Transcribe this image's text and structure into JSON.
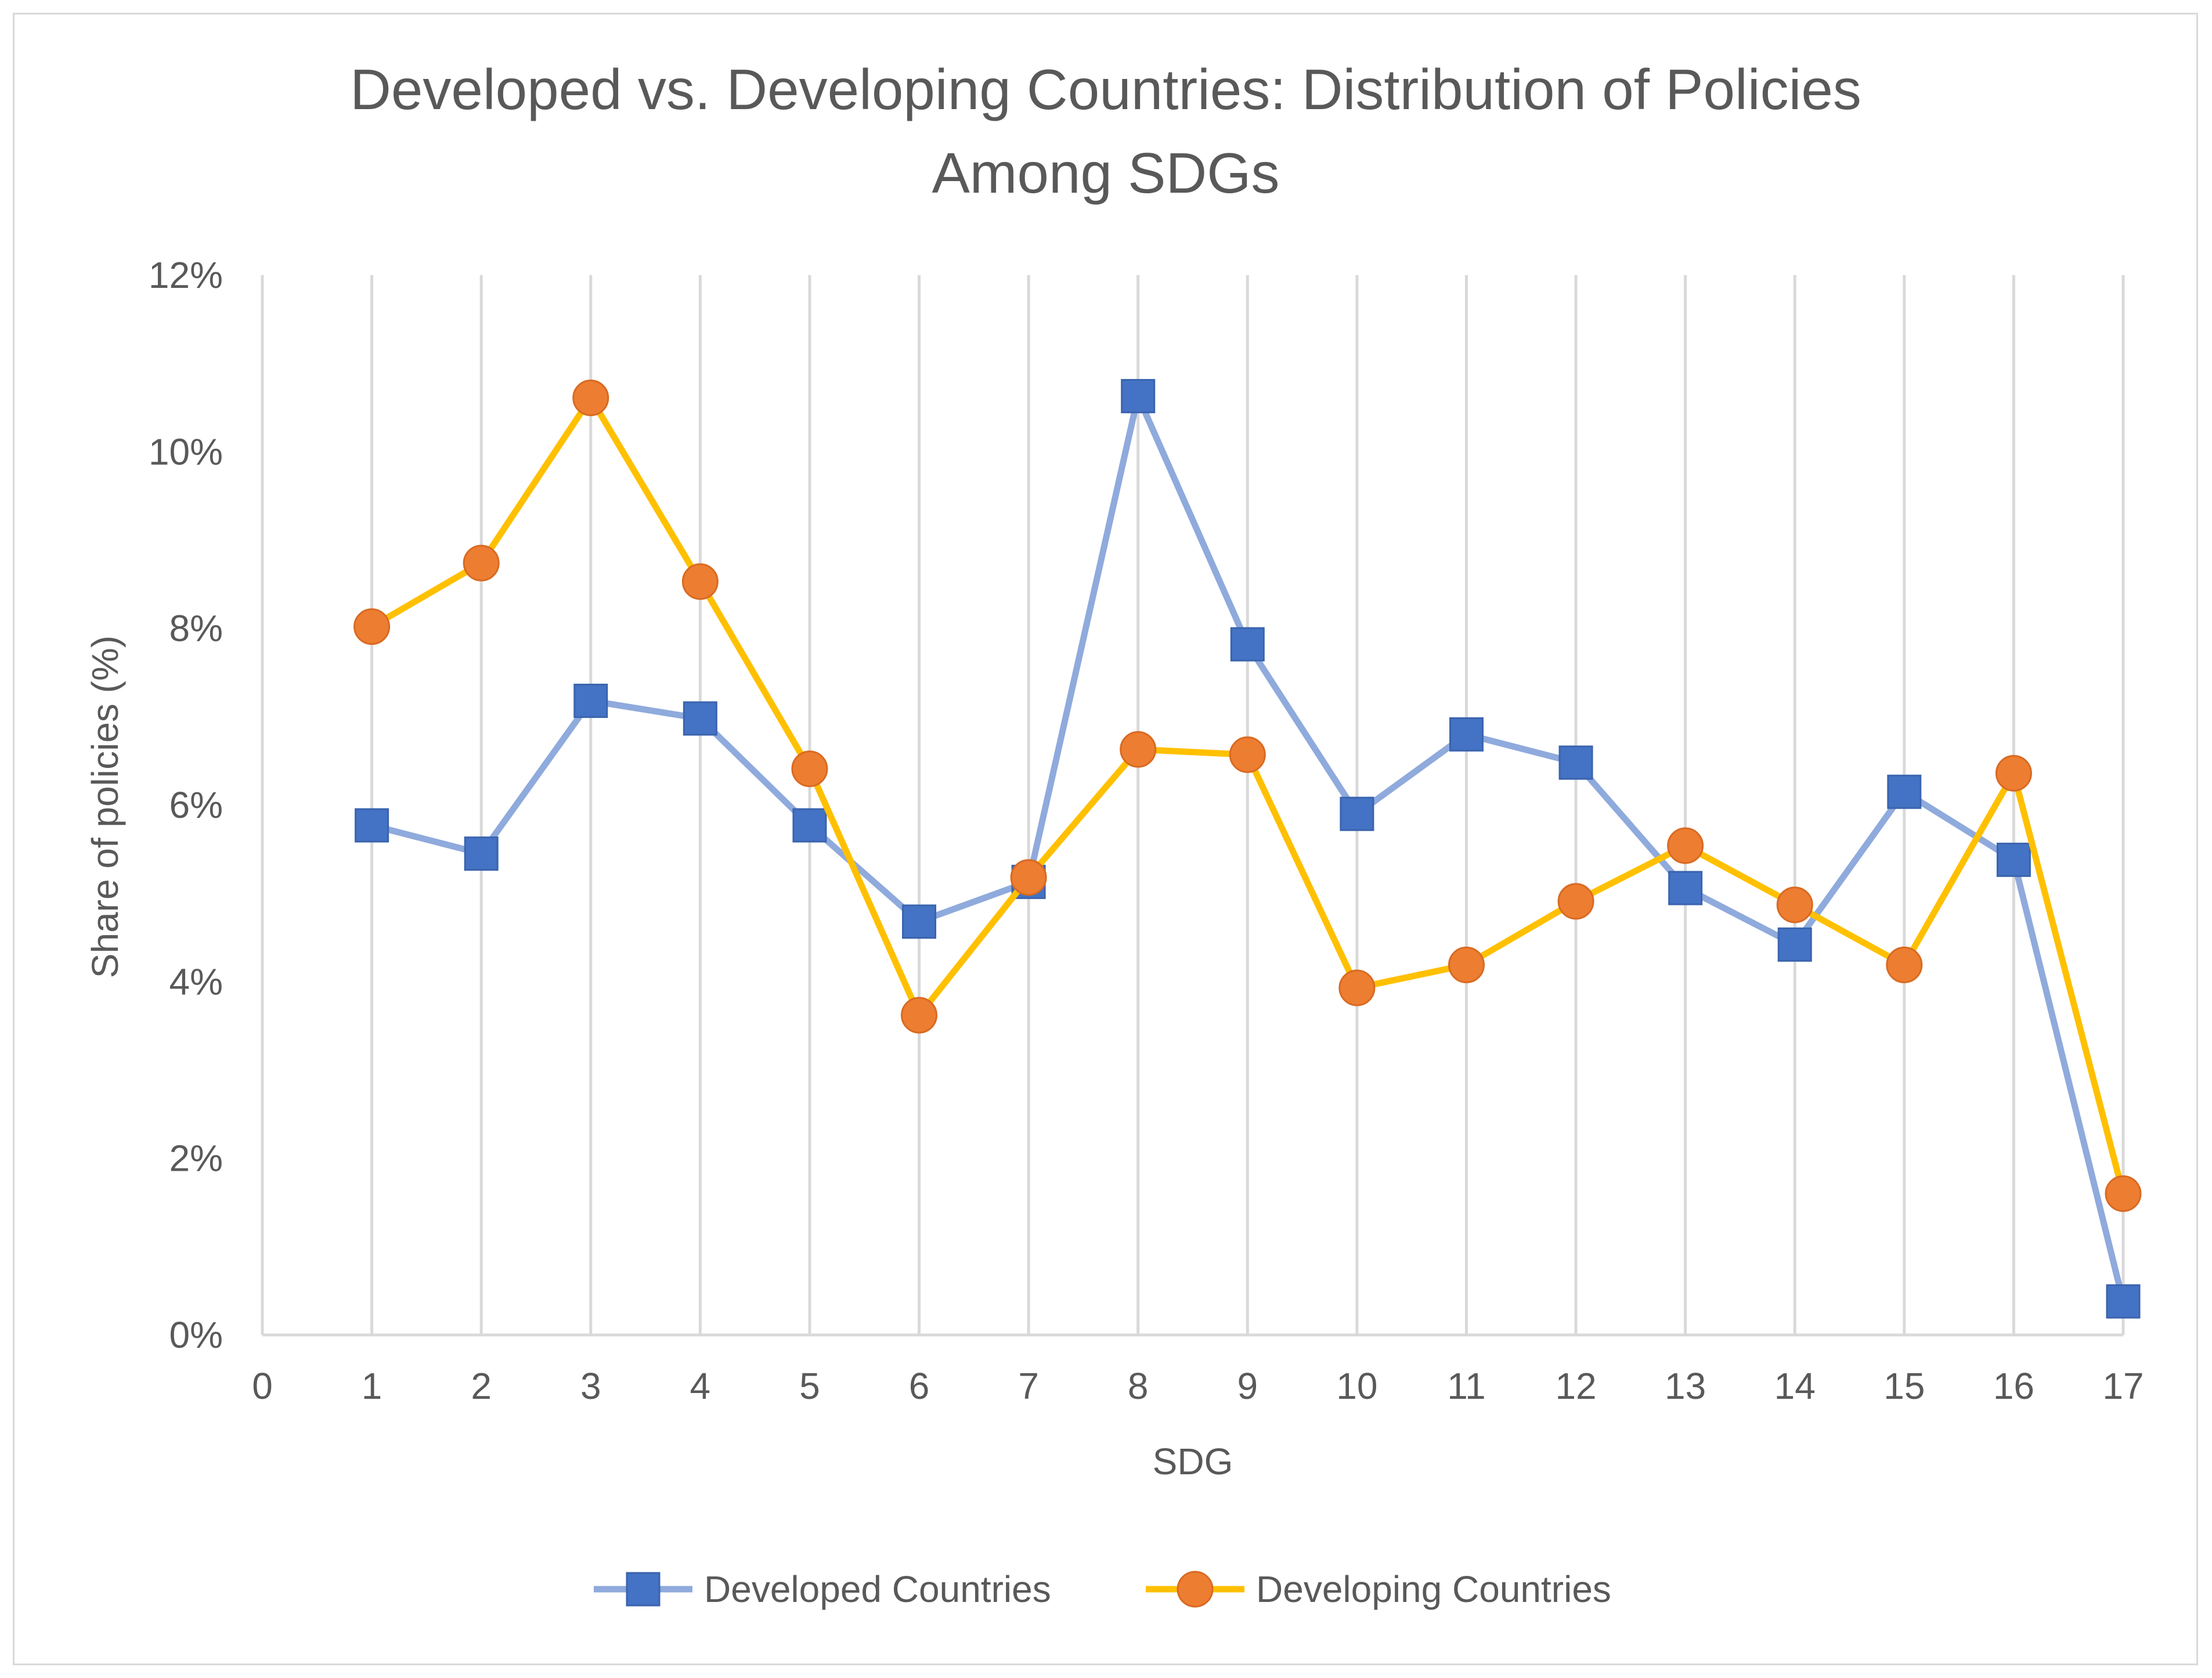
{
  "chart_data": {
    "type": "line",
    "title_lines": [
      "Developed vs. Developing Countries: Distribution of Policies",
      "Among SDGs"
    ],
    "xlabel": "SDG",
    "ylabel": "Share of policies (%)",
    "x_ticks": [
      "0",
      "1",
      "2",
      "3",
      "4",
      "5",
      "6",
      "7",
      "8",
      "9",
      "10",
      "11",
      "12",
      "13",
      "14",
      "15",
      "16",
      "17"
    ],
    "y_ticks": [
      "0%",
      "2%",
      "4%",
      "6%",
      "8%",
      "10%",
      "12%"
    ],
    "xlim": [
      0,
      17
    ],
    "ylim": [
      0,
      12
    ],
    "grid": "vertical",
    "legend_position": "bottom",
    "x": [
      1,
      2,
      3,
      4,
      5,
      6,
      7,
      8,
      9,
      10,
      11,
      12,
      13,
      14,
      15,
      16,
      17
    ],
    "series": [
      {
        "name": "Developed Countries",
        "line_color": "#8faadc",
        "marker_color": "#4472c4",
        "marker": "square",
        "values": [
          5.77,
          5.45,
          7.18,
          6.98,
          5.77,
          4.68,
          5.13,
          10.63,
          7.82,
          5.9,
          6.8,
          6.48,
          5.06,
          4.42,
          6.15,
          5.38,
          0.38
        ]
      },
      {
        "name": "Developing Countries",
        "line_color": "#ffc000",
        "marker_color": "#ed7d31",
        "marker": "circle",
        "values": [
          8.02,
          8.74,
          10.61,
          8.53,
          6.41,
          3.62,
          5.18,
          6.63,
          6.57,
          3.93,
          4.19,
          4.91,
          5.54,
          4.87,
          4.19,
          6.36,
          1.6
        ]
      }
    ]
  }
}
